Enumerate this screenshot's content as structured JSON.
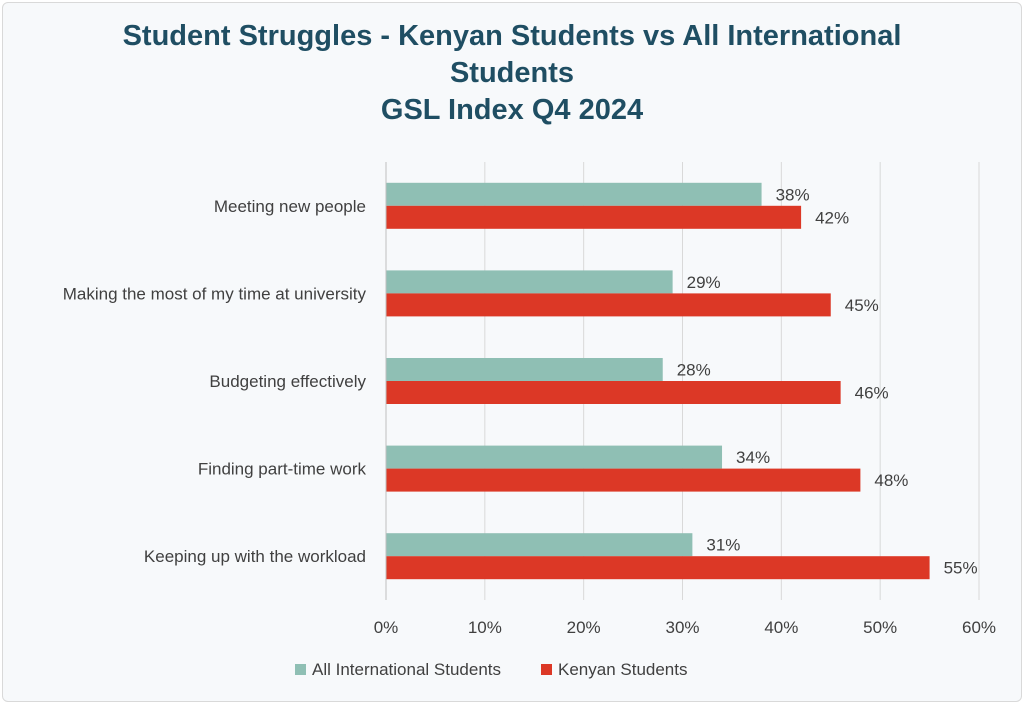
{
  "chart_data": {
    "type": "bar",
    "orientation": "horizontal",
    "title_lines": [
      "Student Struggles - Kenyan Students vs All International",
      "Students",
      "GSL Index Q4 2024"
    ],
    "categories": [
      "Meeting new people",
      "Making the most of my time at university",
      "Budgeting effectively",
      "Finding part-time work",
      "Keeping up with the workload"
    ],
    "series": [
      {
        "name": "All International Students",
        "color": "#8fbfb4",
        "values": [
          38,
          29,
          28,
          34,
          31
        ],
        "labels": [
          "38%",
          "29%",
          "28%",
          "34%",
          "31%"
        ]
      },
      {
        "name": "Kenyan  Students",
        "color": "#dc3826",
        "values": [
          42,
          45,
          46,
          48,
          55
        ],
        "labels": [
          "42%",
          "45%",
          "46%",
          "48%",
          "55%"
        ]
      }
    ],
    "xlim": [
      0,
      60
    ],
    "xticks": [
      "0%",
      "10%",
      "20%",
      "30%",
      "40%",
      "50%",
      "60%"
    ],
    "grid": true,
    "legend": "bottom"
  }
}
